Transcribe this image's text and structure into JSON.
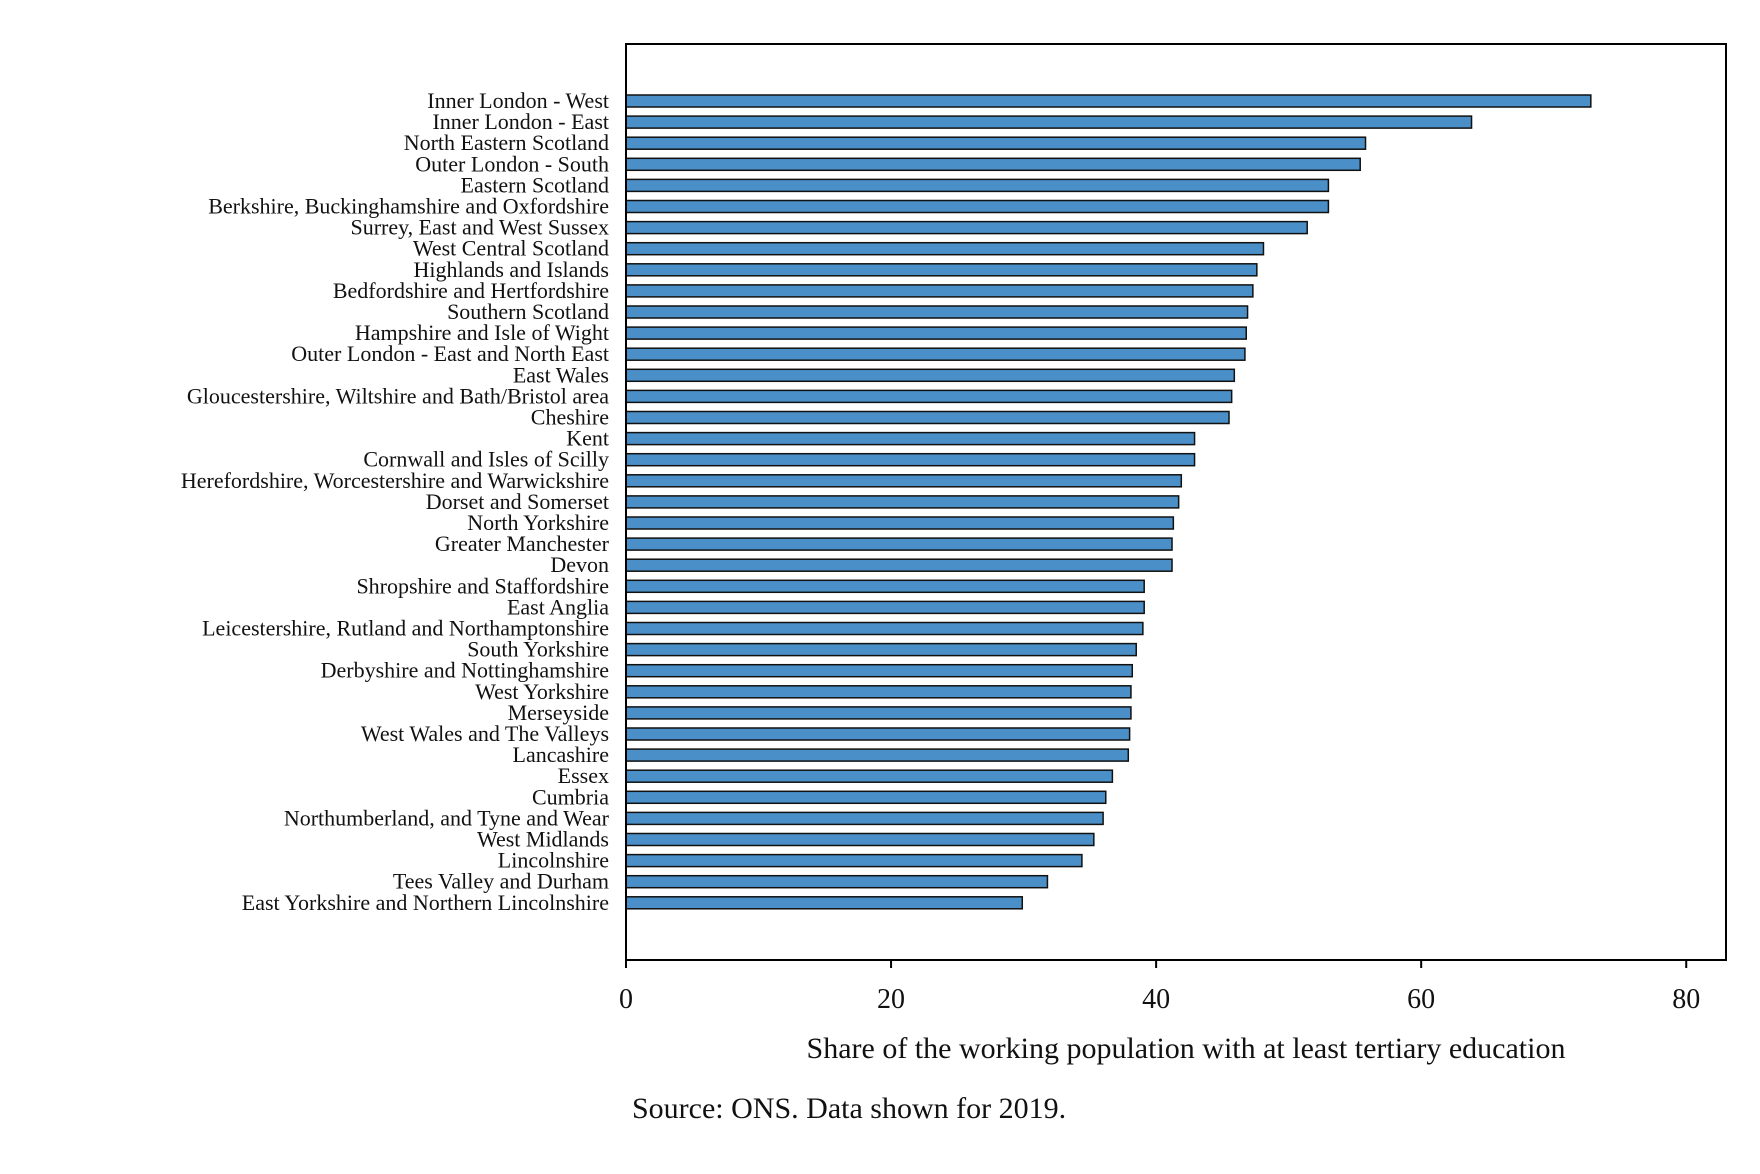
{
  "chart_data": {
    "type": "bar",
    "orientation": "horizontal",
    "categories": [
      "Inner London - West",
      "Inner London - East",
      "North Eastern Scotland",
      "Outer London - South",
      "Eastern Scotland",
      "Berkshire, Buckinghamshire and Oxfordshire",
      "Surrey, East and West Sussex",
      "West Central Scotland",
      "Highlands and Islands",
      "Bedfordshire and Hertfordshire",
      "Southern Scotland",
      "Hampshire and Isle of Wight",
      "Outer London - East and North East",
      "East Wales",
      "Gloucestershire, Wiltshire and Bath/Bristol area",
      "Cheshire",
      "Kent",
      "Cornwall and Isles of Scilly",
      "Herefordshire, Worcestershire and Warwickshire",
      "Dorset and Somerset",
      "North Yorkshire",
      "Greater Manchester",
      "Devon",
      "Shropshire and Staffordshire",
      "East Anglia",
      "Leicestershire, Rutland and Northamptonshire",
      "South Yorkshire",
      "Derbyshire and Nottinghamshire",
      "West Yorkshire",
      "Merseyside",
      "West Wales and The Valleys",
      "Lancashire",
      "Essex",
      "Cumbria",
      "Northumberland, and Tyne and Wear",
      "West Midlands",
      "Lincolnshire",
      "Tees Valley and Durham",
      "East Yorkshire and Northern Lincolnshire"
    ],
    "values": [
      72.8,
      63.8,
      55.8,
      55.4,
      53.0,
      53.0,
      51.4,
      48.1,
      47.6,
      47.3,
      46.9,
      46.8,
      46.7,
      45.9,
      45.7,
      45.5,
      42.9,
      42.9,
      41.9,
      41.7,
      41.3,
      41.2,
      41.2,
      39.1,
      39.1,
      39.0,
      38.5,
      38.2,
      38.1,
      38.1,
      38.0,
      37.9,
      36.7,
      36.2,
      36.0,
      35.3,
      34.4,
      31.8,
      29.9
    ],
    "title": "",
    "xlabel": "Share of the working population with at least tertiary education",
    "ylabel": "",
    "xlim": [
      0,
      83
    ],
    "xticks": [
      0,
      20,
      40,
      60,
      80
    ],
    "grid": false,
    "legend": "none",
    "bar_color": "#4a8fc7",
    "bar_edge_color": "#111111"
  },
  "source_note": "Source: ONS. Data shown for 2019."
}
